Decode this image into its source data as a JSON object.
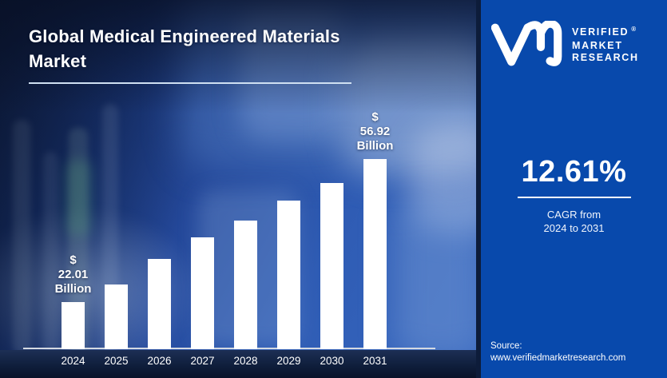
{
  "title": {
    "line1": "Global Medical Engineered Materials",
    "line2": "Market"
  },
  "chart_data": {
    "type": "bar",
    "title": "Global Medical Engineered Materials Market",
    "unit": "USD Billion",
    "categories": [
      "2024",
      "2025",
      "2026",
      "2027",
      "2028",
      "2029",
      "2030",
      "2031"
    ],
    "values": [
      22.01,
      26.3,
      32.5,
      37.8,
      41.9,
      46.7,
      51.0,
      56.92
    ],
    "labeled_points": [
      {
        "category": "2024",
        "value": 22.01,
        "label": "$ 22.01\nBillion"
      },
      {
        "category": "2031",
        "value": 56.92,
        "label": "$ 56.92\nBillion"
      }
    ],
    "first_label": "$ 22.01\nBillion",
    "last_label": "$ 56.92\nBillion",
    "bar_color": "#ffffff",
    "value_axis_visible": false,
    "grid": false,
    "legend": "none",
    "note": "only 2024 and 2031 values are labeled on the chart; intermediate values estimated from bar heights"
  },
  "side_panel": {
    "logo": {
      "monogram": "vmr-monogram",
      "line1": "VERIFIED",
      "line2": "MARKET",
      "line3": "RESEARCH",
      "registered": "®"
    },
    "cagr": {
      "value": "12.61%",
      "caption_line1": "CAGR from",
      "caption_line2": "2024 to 2031"
    },
    "source": {
      "label": "Source:",
      "url": "www.verifiedmarketresearch.com"
    }
  },
  "colors": {
    "panel_blue": "#0849ac",
    "divider_navy": "#0d1c3a",
    "bar_white": "#ffffff",
    "title_white": "#ffffff",
    "title_underline": "#cfe0f2"
  }
}
